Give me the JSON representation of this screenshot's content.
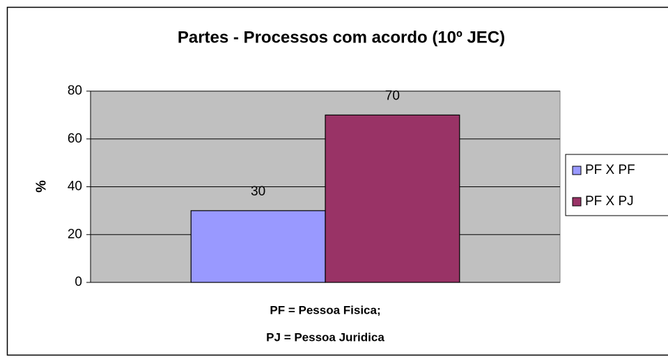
{
  "chart_data": {
    "type": "bar",
    "title": "Partes - Processos com acordo (10º JEC)",
    "ylabel": "%",
    "xlabel": [
      "PF = Pessoa Fisica;",
      "PJ = Pessoa Juridica"
    ],
    "categories": [
      null
    ],
    "series": [
      {
        "name": "PF X PF",
        "color": "#9999ff",
        "values": [
          30
        ]
      },
      {
        "name": "PF X PJ",
        "color": "#993366",
        "values": [
          70
        ]
      }
    ],
    "ylim": [
      0,
      80
    ],
    "yticks": [
      0,
      20,
      40,
      60,
      80
    ],
    "grid": true,
    "legend": "right"
  }
}
